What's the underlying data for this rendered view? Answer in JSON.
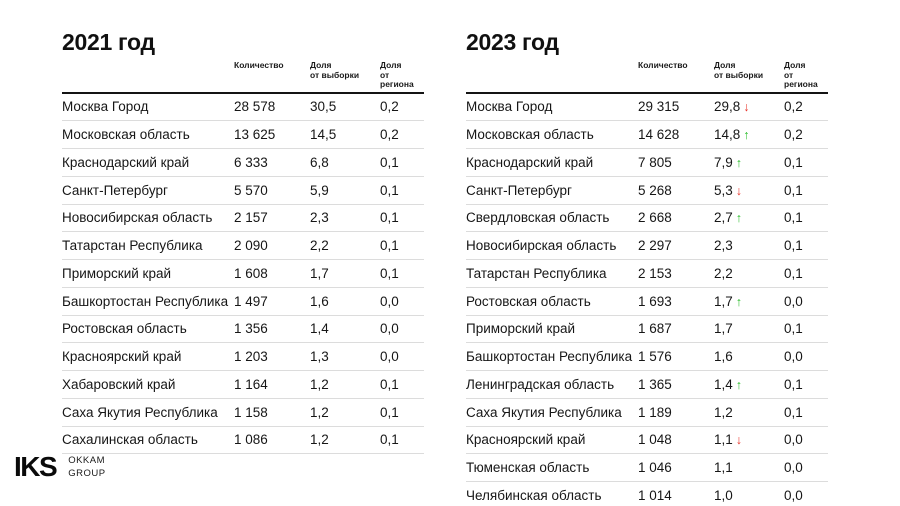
{
  "tables": [
    {
      "title": "2021 год",
      "columns": [
        {
          "label": "Количество",
          "sub": ""
        },
        {
          "label": "Доля",
          "sub": "от выборки"
        },
        {
          "label": "Доля",
          "sub": "от региона"
        }
      ],
      "rows": [
        {
          "region": "Москва Город",
          "count": "28 578",
          "share": "30,5",
          "trend": "",
          "region_share": "0,2"
        },
        {
          "region": "Московская область",
          "count": "13 625",
          "share": "14,5",
          "trend": "",
          "region_share": "0,2"
        },
        {
          "region": "Краснодарский край",
          "count": "6 333",
          "share": "6,8",
          "trend": "",
          "region_share": "0,1"
        },
        {
          "region": "Санкт-Петербург",
          "count": "5 570",
          "share": "5,9",
          "trend": "",
          "region_share": "0,1"
        },
        {
          "region": "Новосибирская область",
          "count": "2 157",
          "share": "2,3",
          "trend": "",
          "region_share": "0,1"
        },
        {
          "region": "Татарстан Республика",
          "count": "2 090",
          "share": "2,2",
          "trend": "",
          "region_share": "0,1"
        },
        {
          "region": "Приморский край",
          "count": "1 608",
          "share": "1,7",
          "trend": "",
          "region_share": "0,1"
        },
        {
          "region": "Башкортостан Республика",
          "count": "1 497",
          "share": "1,6",
          "trend": "",
          "region_share": "0,0"
        },
        {
          "region": "Ростовская область",
          "count": "1 356",
          "share": "1,4",
          "trend": "",
          "region_share": "0,0"
        },
        {
          "region": "Красноярский край",
          "count": "1 203",
          "share": "1,3",
          "trend": "",
          "region_share": "0,0"
        },
        {
          "region": "Хабаровский край",
          "count": "1 164",
          "share": "1,2",
          "trend": "",
          "region_share": "0,1"
        },
        {
          "region": "Саха Якутия Республика",
          "count": "1 158",
          "share": "1,2",
          "trend": "",
          "region_share": "0,1"
        },
        {
          "region": "Сахалинская область",
          "count": "1 086",
          "share": "1,2",
          "trend": "",
          "region_share": "0,1"
        }
      ]
    },
    {
      "title": "2023 год",
      "columns": [
        {
          "label": "Количество",
          "sub": ""
        },
        {
          "label": "Доля",
          "sub": "от выборки"
        },
        {
          "label": "Доля",
          "sub": "от региона"
        }
      ],
      "rows": [
        {
          "region": "Москва Город",
          "count": "29 315",
          "share": "29,8",
          "trend": "down",
          "region_share": "0,2"
        },
        {
          "region": "Московская область",
          "count": "14 628",
          "share": "14,8",
          "trend": "up",
          "region_share": "0,2"
        },
        {
          "region": "Краснодарский край",
          "count": "7 805",
          "share": "7,9",
          "trend": "up",
          "region_share": "0,1"
        },
        {
          "region": "Санкт-Петербург",
          "count": "5 268",
          "share": "5,3",
          "trend": "down",
          "region_share": "0,1"
        },
        {
          "region": "Свердловская область",
          "count": "2 668",
          "share": "2,7",
          "trend": "up",
          "region_share": "0,1"
        },
        {
          "region": "Новосибирская область",
          "count": "2 297",
          "share": "2,3",
          "trend": "",
          "region_share": "0,1"
        },
        {
          "region": "Татарстан Республика",
          "count": "2 153",
          "share": "2,2",
          "trend": "",
          "region_share": "0,1"
        },
        {
          "region": "Ростовская область",
          "count": "1 693",
          "share": "1,7",
          "trend": "up",
          "region_share": "0,0"
        },
        {
          "region": "Приморский край",
          "count": "1 687",
          "share": "1,7",
          "trend": "",
          "region_share": "0,1"
        },
        {
          "region": "Башкортостан Республика",
          "count": "1 576",
          "share": "1,6",
          "trend": "",
          "region_share": "0,0"
        },
        {
          "region": "Ленинградская область",
          "count": "1 365",
          "share": "1,4",
          "trend": "up",
          "region_share": "0,1"
        },
        {
          "region": "Саха Якутия Республика",
          "count": "1 189",
          "share": "1,2",
          "trend": "",
          "region_share": "0,1"
        },
        {
          "region": "Красноярский край",
          "count": "1 048",
          "share": "1,1",
          "trend": "down",
          "region_share": "0,0"
        },
        {
          "region": "Тюменская область",
          "count": "1 046",
          "share": "1,1",
          "trend": "",
          "region_share": "0,0"
        },
        {
          "region": "Челябинская область",
          "count": "1 014",
          "share": "1,0",
          "trend": "",
          "region_share": "0,0"
        }
      ]
    }
  ],
  "footer": {
    "logo": "IKS",
    "company_line1": "OKKAM",
    "company_line2": "GROUP"
  },
  "colors": {
    "trend_up": "#2bbd2b",
    "trend_down": "#e8342a",
    "header_rule": "#141414",
    "row_divider": "#dcdcdc"
  }
}
